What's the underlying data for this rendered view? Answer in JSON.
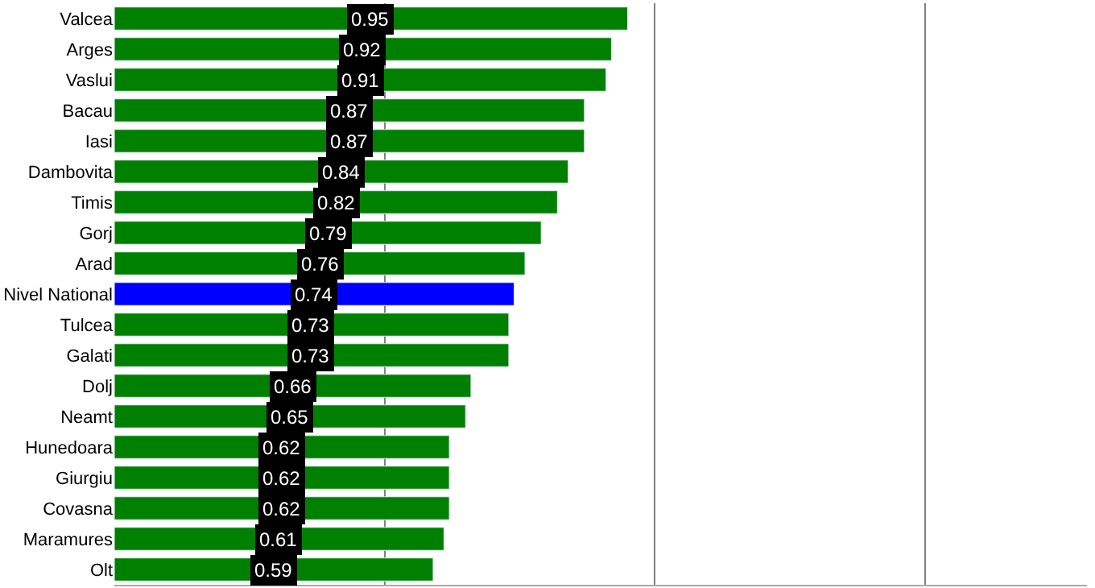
{
  "chart_data": {
    "type": "bar",
    "orientation": "horizontal",
    "categories": [
      "Valcea",
      "Arges",
      "Vaslui",
      "Bacau",
      "Iasi",
      "Dambovita",
      "Timis",
      "Gorj",
      "Arad",
      "Nivel National",
      "Tulcea",
      "Galati",
      "Dolj",
      "Neamt",
      "Hunedoara",
      "Giurgiu",
      "Covasna",
      "Maramures",
      "Olt"
    ],
    "values": [
      0.95,
      0.92,
      0.91,
      0.87,
      0.87,
      0.84,
      0.82,
      0.79,
      0.76,
      0.74,
      0.73,
      0.73,
      0.66,
      0.65,
      0.62,
      0.62,
      0.62,
      0.61,
      0.59
    ],
    "colors": [
      "#008000",
      "#008000",
      "#008000",
      "#008000",
      "#008000",
      "#008000",
      "#008000",
      "#008000",
      "#008000",
      "#0000ff",
      "#008000",
      "#008000",
      "#008000",
      "#008000",
      "#008000",
      "#008000",
      "#008000",
      "#008000",
      "#008000"
    ],
    "data_labels": true,
    "xlim": [
      0,
      1.8
    ],
    "xticks": [
      {
        "value": 0.5,
        "label": null
      },
      {
        "value": 1.0,
        "label": null
      },
      {
        "value": 1.5,
        "label": null
      }
    ],
    "grid": "x",
    "tick_labels": "y",
    "legend": false
  }
}
